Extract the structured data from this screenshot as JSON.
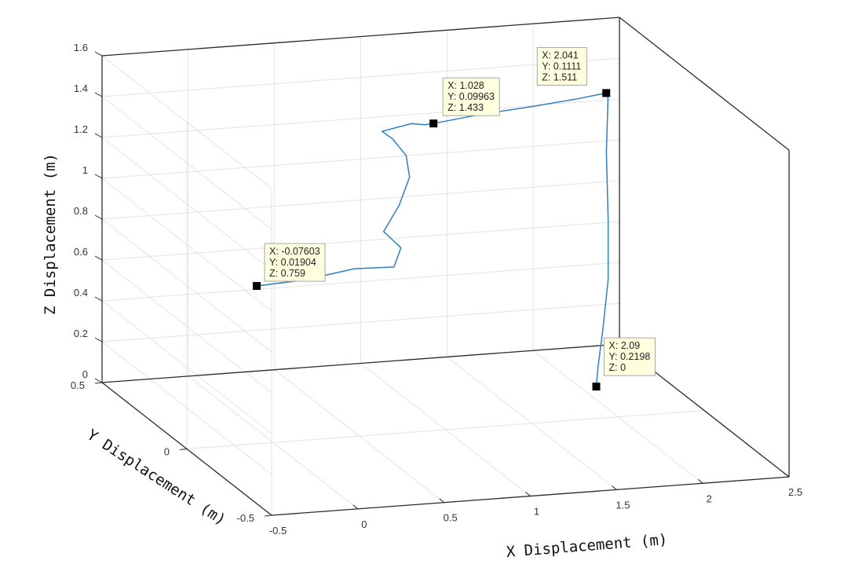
{
  "chart_data": {
    "type": "line3d",
    "xlabel": "X Displacement (m)",
    "ylabel": "Y Displacement (m)",
    "zlabel": "Z Displacement (m)",
    "xlim": [
      -0.5,
      2.5
    ],
    "ylim": [
      -0.5,
      0.5
    ],
    "zlim": [
      0,
      1.6
    ],
    "x_ticks": [
      "-0.5",
      "0",
      "0.5",
      "1",
      "1.5",
      "2",
      "2.5"
    ],
    "y_ticks": [
      "-0.5",
      "0",
      "0.5"
    ],
    "z_ticks": [
      "0",
      "0.2",
      "0.4",
      "0.6",
      "0.8",
      "1",
      "1.2",
      "1.4",
      "1.6"
    ],
    "grid": true,
    "line_color": "#2f7fc1",
    "series": [
      {
        "x": [
          -0.07603,
          0.2,
          0.5,
          0.75,
          0.82,
          0.7,
          0.78,
          0.86,
          0.85,
          0.78,
          0.72,
          0.9,
          0.98,
          1.028,
          1.3,
          1.6,
          1.85,
          2.041,
          2.06,
          2.07,
          2.1,
          2.12,
          2.11,
          2.09,
          2.09
        ],
        "y": [
          0.01904,
          0.02,
          0.03,
          0.05,
          0.08,
          0.06,
          0.05,
          0.07,
          0.08,
          0.09,
          0.09,
          0.1,
          0.1,
          0.09963,
          0.1,
          0.1,
          0.1,
          0.1111,
          0.12,
          0.14,
          0.16,
          0.18,
          0.2,
          0.21,
          0.2198
        ],
        "z": [
          0.759,
          0.77,
          0.8,
          0.78,
          0.85,
          0.95,
          1.08,
          1.2,
          1.3,
          1.38,
          1.42,
          1.44,
          1.43,
          1.433,
          1.46,
          1.48,
          1.5,
          1.511,
          1.48,
          1.2,
          0.85,
          0.55,
          0.3,
          0.1,
          0
        ]
      }
    ],
    "datatips": [
      {
        "x": -0.07603,
        "y": 0.01904,
        "z": 0.759,
        "lines": [
          "X: -0.07603",
          "Y: 0.01904",
          "Z: 0.759"
        ]
      },
      {
        "x": 1.028,
        "y": 0.09963,
        "z": 1.433,
        "lines": [
          "X: 1.028",
          "Y: 0.09963",
          "Z: 1.433"
        ]
      },
      {
        "x": 2.041,
        "y": 0.1111,
        "z": 1.511,
        "lines": [
          "X: 2.041",
          "Y: 0.1111",
          "Z: 1.511"
        ]
      },
      {
        "x": 2.09,
        "y": 0.2198,
        "z": 0,
        "lines": [
          "X: 2.09",
          "Y: 0.2198",
          "Z: 0"
        ]
      }
    ]
  }
}
